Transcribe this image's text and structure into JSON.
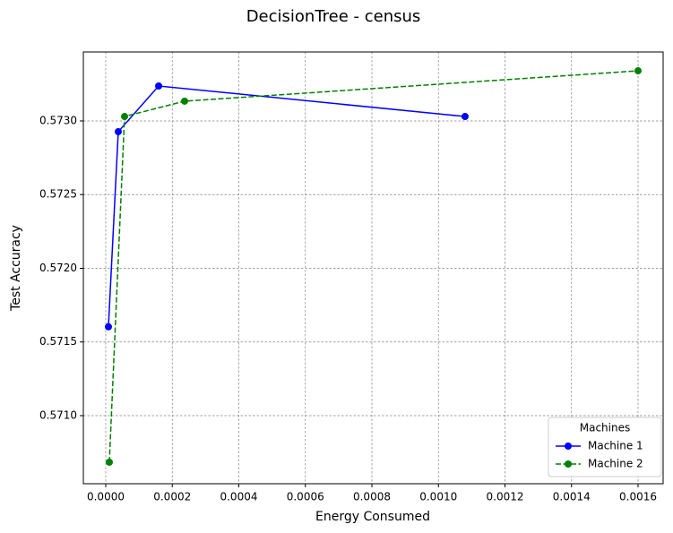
{
  "chart_data": {
    "type": "line",
    "title": "DecisionTree - census",
    "x_label": "Energy Consumed",
    "y_label": "Test Accuracy",
    "xlim": [
      -6.73e-05,
      0.0016754
    ],
    "ylim": [
      0.570538,
      0.573468
    ],
    "xticks": [
      {
        "value": 0,
        "label": "0.0000"
      },
      {
        "value": 0.0002,
        "label": "0.0002"
      },
      {
        "value": 0.0004,
        "label": "0.0004"
      },
      {
        "value": 0.0006,
        "label": "0.0006"
      },
      {
        "value": 0.0008,
        "label": "0.0008"
      },
      {
        "value": 0.001,
        "label": "0.0010"
      },
      {
        "value": 0.0012,
        "label": "0.0012"
      },
      {
        "value": 0.0014,
        "label": "0.0014"
      },
      {
        "value": 0.0016,
        "label": "0.0016"
      }
    ],
    "yticks": [
      {
        "value": 0.571,
        "label": "0.5710"
      },
      {
        "value": 0.5715,
        "label": "0.5715"
      },
      {
        "value": 0.572,
        "label": "0.5720"
      },
      {
        "value": 0.5725,
        "label": "0.5725"
      },
      {
        "value": 0.573,
        "label": "0.5730"
      }
    ],
    "grid": true,
    "legend": {
      "title": "Machines",
      "location": "lower right"
    },
    "series": [
      {
        "name": "Machine 1",
        "color": "#0000ff",
        "linestyle": "solid",
        "x": [
          8.1e-06,
          3.77e-05,
          0.000159,
          0.00108
        ],
        "values": [
          0.571603,
          0.572927,
          0.573237,
          0.57303
        ]
      },
      {
        "name": "Machine 2",
        "color": "#008000",
        "linestyle": "dashed",
        "x": [
          1.08e-05,
          5.66e-05,
          0.000237,
          0.0016
        ],
        "values": [
          0.570684,
          0.57303,
          0.573134,
          0.57334
        ]
      }
    ]
  }
}
